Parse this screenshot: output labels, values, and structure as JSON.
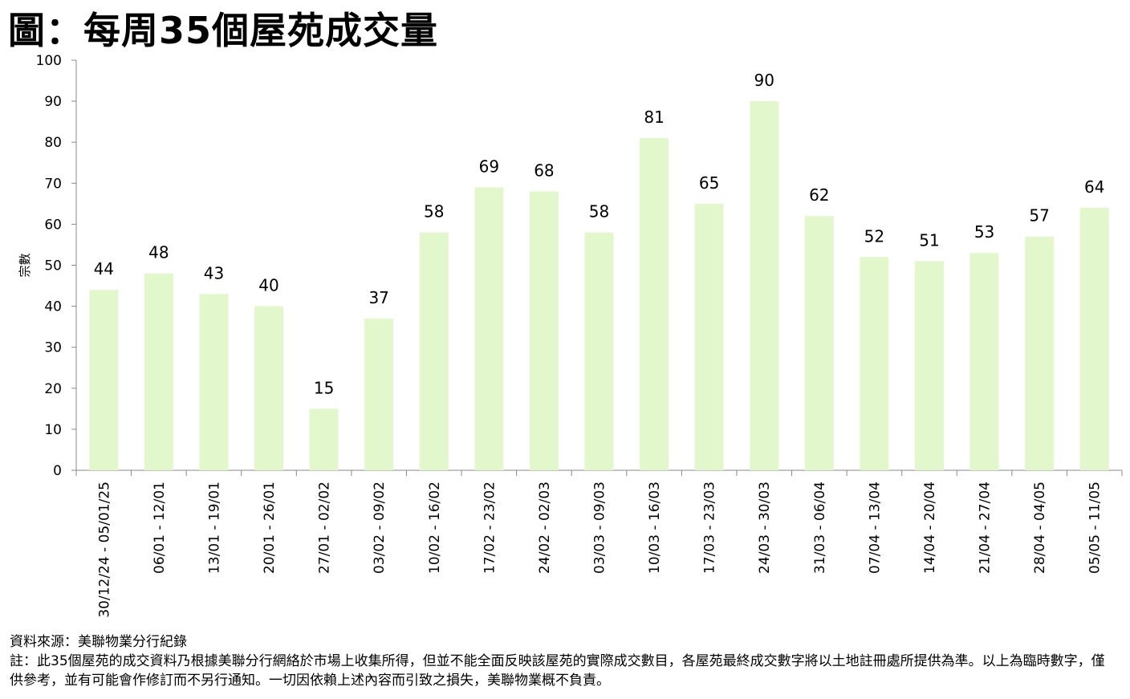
{
  "title": "圖：每周35個屋苑成交量",
  "chart_data": {
    "type": "bar",
    "ylabel": "宗數",
    "ylim": [
      0,
      100
    ],
    "yticks": [
      0,
      10,
      20,
      30,
      40,
      50,
      60,
      70,
      80,
      90,
      100
    ],
    "categories": [
      "30/12/24 - 05/01/25",
      "06/01 - 12/01",
      "13/01 - 19/01",
      "20/01 - 26/01",
      "27/01 - 02/02",
      "03/02 - 09/02",
      "10/02 - 16/02",
      "17/02 - 23/02",
      "24/02 - 02/03",
      "03/03 - 09/03",
      "10/03 - 16/03",
      "17/03 - 23/03",
      "24/03 - 30/03",
      "31/03 - 06/04",
      "07/04 - 13/04",
      "14/04 - 20/04",
      "21/04 - 27/04",
      "28/04 - 04/05",
      "05/05 - 11/05"
    ],
    "values": [
      44,
      48,
      43,
      40,
      15,
      37,
      58,
      69,
      68,
      58,
      81,
      65,
      90,
      62,
      52,
      51,
      53,
      57,
      64
    ],
    "bar_color": "#e2f7cc",
    "grid": false,
    "legend": "none"
  },
  "notes": {
    "source": "資料來源：美聯物業分行紀錄",
    "disclaimer": "註：此35個屋苑的成交資料乃根據美聯分行網絡於市場上收集所得，但並不能全面反映該屋苑的實際成交數目，各屋苑最終成交數字將以土地註冊處所提供為準。以上為臨時數字，僅供參考，並有可能會作修訂而不另行通知。一切因依賴上述內容而引致之損失，美聯物業概不負責。"
  }
}
